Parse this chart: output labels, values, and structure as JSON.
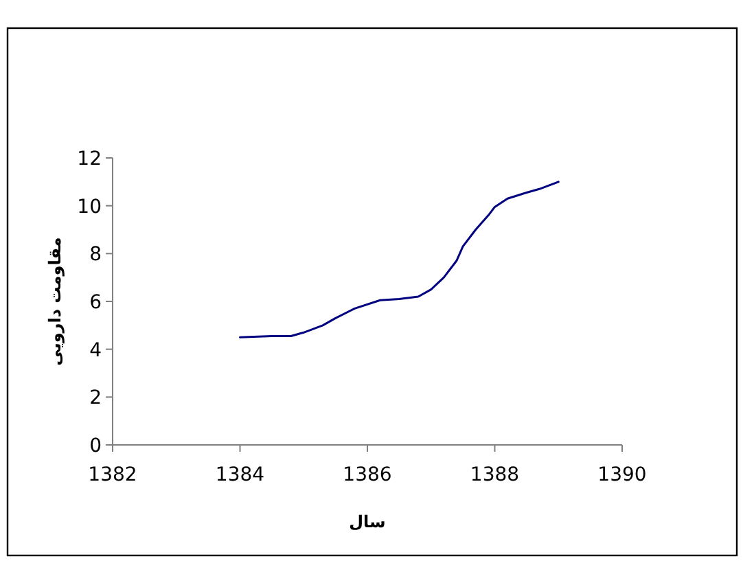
{
  "chart_data": {
    "type": "line",
    "xlabel": "سال",
    "ylabel": "مقاومت دارویی",
    "x": [
      1384,
      1384.5,
      1384.8,
      1385,
      1385.3,
      1385.5,
      1385.8,
      1386.2,
      1386.5,
      1386.8,
      1387,
      1387.2,
      1387.4,
      1387.5,
      1387.7,
      1387.9,
      1388,
      1388.2,
      1388.5,
      1388.7,
      1389
    ],
    "series": [
      {
        "color": "#000080",
        "values": [
          4.5,
          4.55,
          4.55,
          4.7,
          5.0,
          5.3,
          5.7,
          6.05,
          6.1,
          6.2,
          6.5,
          7.0,
          7.7,
          8.3,
          9.0,
          9.6,
          9.95,
          10.3,
          10.55,
          10.7,
          11.0
        ]
      }
    ],
    "xlim": [
      1382,
      1390
    ],
    "ylim": [
      0,
      12
    ],
    "xticks": [
      1382,
      1384,
      1386,
      1388,
      1390
    ],
    "yticks": [
      0,
      2,
      4,
      6,
      8,
      10,
      12
    ]
  }
}
